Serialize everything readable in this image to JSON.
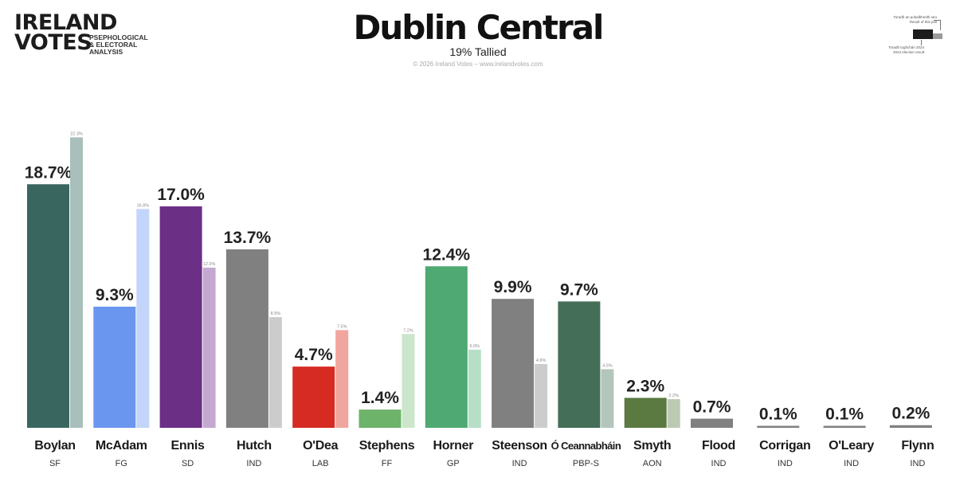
{
  "brand": {
    "logo_line1": "IRELAND",
    "logo_line2": "VOTES",
    "tagline": [
      "PSEPHOLOGICAL",
      "& ELECTORAL",
      "ANALYSIS"
    ]
  },
  "header": {
    "title": "Dublin Central",
    "subtitle": "19% Tallied",
    "credit": "© 2026 Ireland Votes – www.irelandvotes.com"
  },
  "legend": {
    "current_lines": [
      "Toradh an pobalbhreith seo",
      "Result of this poll"
    ],
    "previous_lines": [
      "Toradh toghchán 2024",
      "2024 election result"
    ]
  },
  "colors": {
    "background": "#ffffff",
    "SF": "#3a6660",
    "SF_prev": "#a8bfbb",
    "FG": "#6a96f0",
    "FG_prev": "#c4d5fb",
    "SD": "#6b2f86",
    "SD_prev": "#c4a8d2",
    "IND": "#808080",
    "IND_prev": "#cccccc",
    "LAB": "#d52b22",
    "LAB_prev": "#f1a59f",
    "FF": "#6db36a",
    "FF_prev": "#cbe6ca",
    "GP": "#4ea972",
    "GP_prev": "#b6dfc6",
    "PBP-S": "#456e58",
    "PBP-S_prev": "#b3c6bc",
    "AON": "#5a7a42",
    "AON_prev": "#bccab3"
  },
  "chart_data": {
    "type": "bar",
    "title": "Dublin Central",
    "subtitle": "19% Tallied",
    "value_unit": "%",
    "ylim": [
      0,
      25
    ],
    "grid": false,
    "legend_position": "top-right",
    "categories": [
      "Boylan",
      "McAdam",
      "Ennis",
      "Hutch",
      "O'Dea",
      "Stephens",
      "Horner",
      "Steenson",
      "Ó Ceannabháin",
      "Smyth",
      "Flood",
      "Corrigan",
      "O'Leary",
      "Flynn"
    ],
    "parties": [
      "SF",
      "FG",
      "SD",
      "IND",
      "LAB",
      "FF",
      "GP",
      "IND",
      "PBP-S",
      "AON",
      "IND",
      "IND",
      "IND",
      "IND"
    ],
    "series": [
      {
        "name": "Result of this poll",
        "values": [
          18.7,
          9.3,
          17.0,
          13.7,
          4.7,
          1.4,
          12.4,
          9.9,
          9.7,
          2.3,
          0.7,
          0.1,
          0.1,
          0.2
        ]
      },
      {
        "name": "2024 election result",
        "values": [
          22.3,
          16.8,
          12.3,
          8.5,
          7.5,
          7.2,
          6.0,
          4.9,
          4.5,
          2.2,
          null,
          null,
          null,
          null
        ]
      }
    ]
  }
}
